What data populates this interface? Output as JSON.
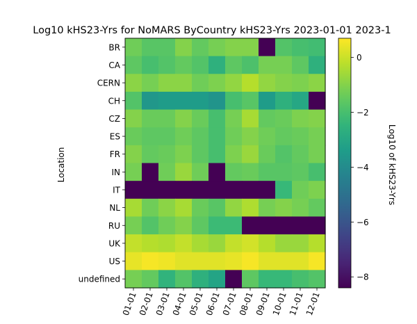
{
  "chart_data": {
    "type": "heatmap",
    "title": "Log10 kHS23-Yrs for NoMARS ByCountry kHS23-Yrs 2023-01-01 2023-1",
    "xlabel": "",
    "ylabel": "Location",
    "colorbar_label": "Log10 of kHS23-Yrs",
    "colormap": "viridis",
    "color_range": [
      -8.4,
      0.7
    ],
    "colorbar_ticks": [
      0,
      -2,
      -4,
      -6,
      -8
    ],
    "colorbar_tick_labels": [
      "0",
      "−2",
      "−4",
      "−6",
      "−8"
    ],
    "x_tick_labels": [
      "01-01",
      "02-01",
      "03-01",
      "04-01",
      "05-01",
      "06-01",
      "07-01",
      "08-01",
      "09-01",
      "10-01",
      "11-01",
      "12-01"
    ],
    "rows": [
      "BR",
      "CA",
      "CERN",
      "CH",
      "CZ",
      "ES",
      "FR",
      "IN",
      "IT",
      "NL",
      "RU",
      "UK",
      "US",
      "undefined"
    ],
    "values": [
      [
        -1.3,
        -1.7,
        -1.7,
        -1.0,
        -1.5,
        -1.2,
        -1.0,
        -1.0,
        -8.4,
        -1.8,
        -2.0,
        -2.1
      ],
      [
        -1.6,
        -2.0,
        -1.8,
        -1.5,
        -1.8,
        -2.6,
        -1.6,
        -1.9,
        -1.2,
        -1.2,
        -1.6,
        -2.6
      ],
      [
        -0.9,
        -1.2,
        -0.9,
        -0.9,
        -1.3,
        -1.1,
        -0.8,
        -0.3,
        -0.8,
        -1.0,
        -1.1,
        -0.9
      ],
      [
        -1.8,
        -3.6,
        -3.4,
        -3.4,
        -3.4,
        -3.7,
        -2.0,
        -1.7,
        -3.4,
        -2.6,
        -3.0,
        -8.4
      ],
      [
        -1.0,
        -1.4,
        -1.4,
        -1.0,
        -1.4,
        -2.0,
        -1.2,
        -0.5,
        -1.5,
        -1.4,
        -1.1,
        -1.0
      ],
      [
        -1.4,
        -1.6,
        -1.6,
        -1.3,
        -1.6,
        -2.0,
        -1.3,
        -1.0,
        -1.3,
        -1.5,
        -1.4,
        -1.2
      ],
      [
        -1.0,
        -1.5,
        -1.4,
        -1.1,
        -1.6,
        -2.0,
        -1.1,
        -0.7,
        -1.4,
        -1.8,
        -1.5,
        -1.2
      ],
      [
        -1.2,
        -8.4,
        -1.3,
        -0.7,
        -1.3,
        -8.4,
        -1.5,
        -1.4,
        -1.7,
        -1.7,
        -1.6,
        -2.0
      ],
      [
        -8.4,
        -8.4,
        -8.4,
        -8.4,
        -8.4,
        -8.4,
        -8.4,
        -8.4,
        -8.4,
        -2.3,
        -1.3,
        -1.1
      ],
      [
        -0.5,
        -1.3,
        -0.9,
        -0.5,
        -1.4,
        -1.7,
        -0.8,
        -0.4,
        -1.2,
        -1.0,
        -1.2,
        -1.5
      ],
      [
        -1.2,
        -1.8,
        -1.3,
        -1.0,
        -1.6,
        -2.2,
        -2.2,
        -8.4,
        -8.4,
        -8.4,
        -8.4,
        -8.4
      ],
      [
        -0.1,
        -0.3,
        -0.4,
        -0.1,
        -0.5,
        -0.7,
        -0.1,
        0.1,
        -0.3,
        -0.7,
        -0.7,
        -0.3
      ],
      [
        0.4,
        0.6,
        0.5,
        0.3,
        0.3,
        0.3,
        0.4,
        0.6,
        0.3,
        0.3,
        0.3,
        0.6
      ],
      [
        -1.2,
        -1.5,
        -2.5,
        -1.8,
        -2.6,
        -3.1,
        -8.4,
        -1.6,
        -2.3,
        -2.3,
        -2.0,
        -1.8
      ]
    ]
  }
}
